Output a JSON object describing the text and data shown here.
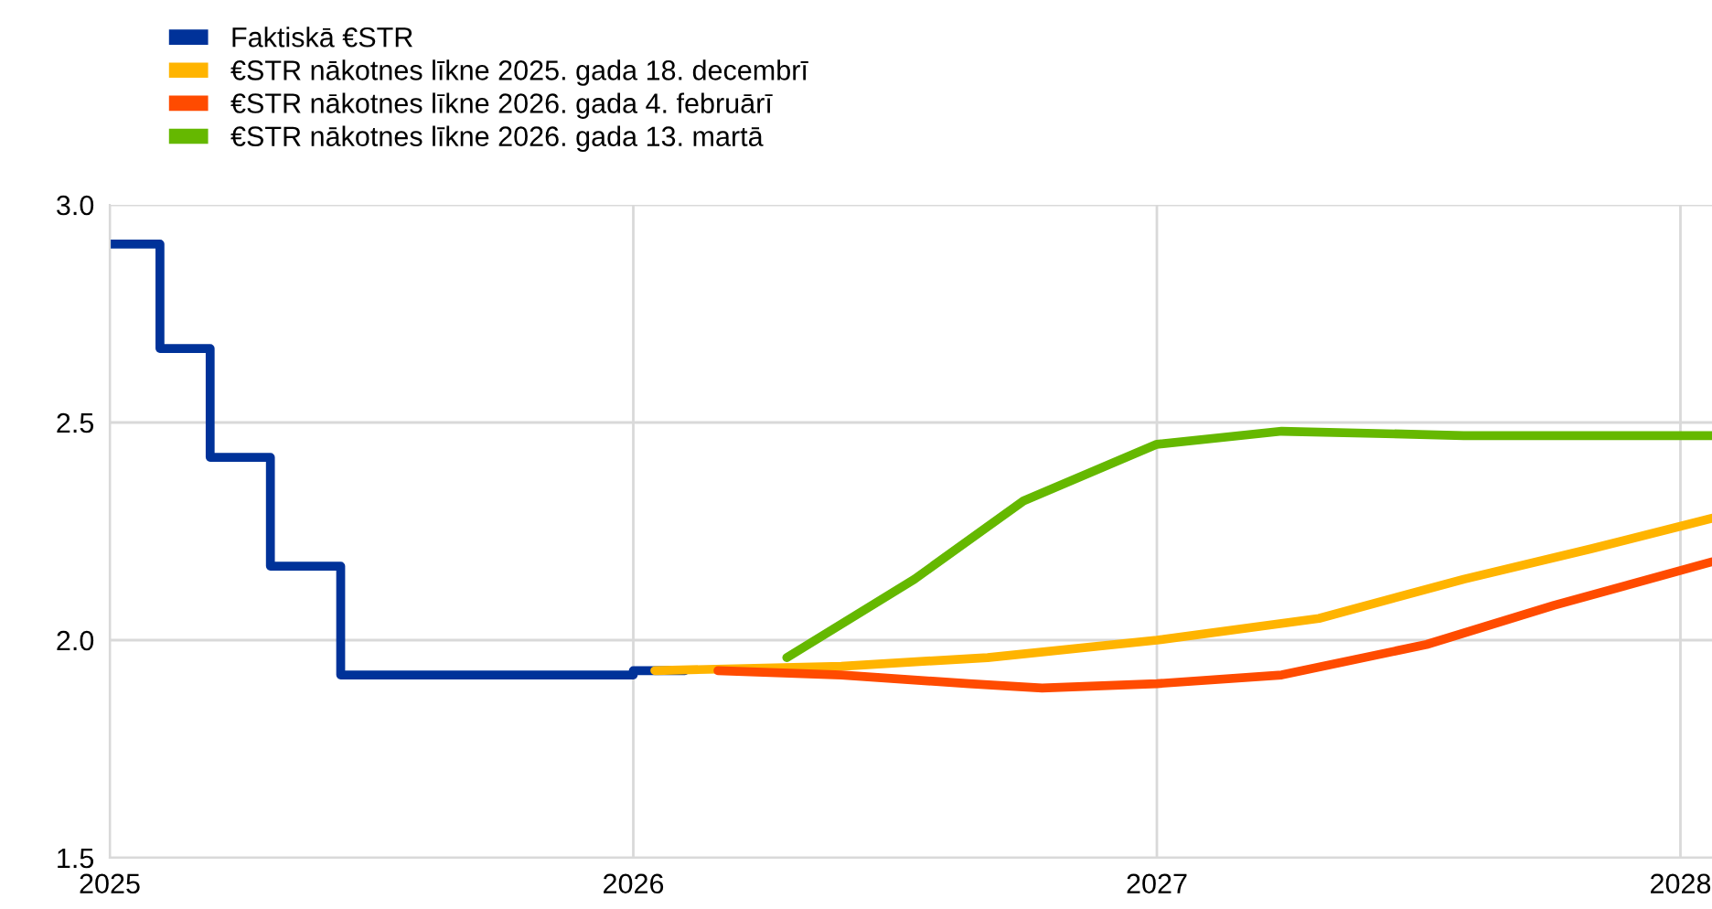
{
  "chart_data": {
    "type": "line",
    "xlim": [
      "2025-01-01",
      "2028-01-23"
    ],
    "xticks": [
      {
        "value": "2025-01-01",
        "label": "2025"
      },
      {
        "value": "2026-01-01",
        "label": "2026"
      },
      {
        "value": "2027-01-01",
        "label": "2027"
      },
      {
        "value": "2028-01-01",
        "label": "2028"
      }
    ],
    "ylim": [
      1.5,
      3.0
    ],
    "yticks": [
      {
        "value": 1.5,
        "label": "1.5"
      },
      {
        "value": 2.0,
        "label": "2.0"
      },
      {
        "value": 2.5,
        "label": "2.5"
      },
      {
        "value": 3.0,
        "label": "3.0"
      }
    ],
    "grid": true,
    "legend": "top left",
    "marker": "none",
    "line_style": "solid",
    "series": [
      {
        "name": "Faktiskā €STR",
        "type": "step",
        "color": "#003299",
        "x": [
          "2025-01-01",
          "2025-02-05",
          "2025-03-12",
          "2025-04-23",
          "2025-06-11",
          "2026-01-01",
          "2026-02-06"
        ],
        "values": [
          2.91,
          2.67,
          2.42,
          2.17,
          1.92,
          1.93,
          1.93
        ]
      },
      {
        "name": "€STR nākotnes līkne 2025. gada 18. decembrī",
        "color": "#ffb400",
        "x": [
          "2026-01-16",
          "2026-05-26",
          "2026-09-05",
          "2027-01-01",
          "2027-04-24",
          "2027-08-03",
          "2027-10-31",
          "2028-01-23"
        ],
        "values": [
          1.93,
          1.94,
          1.96,
          2.0,
          2.05,
          2.14,
          2.21,
          2.28
        ]
      },
      {
        "name": "€STR nākotnes līkne 2026. gada 4. februārī",
        "color": "#ff4b00",
        "x": [
          "2026-03-01",
          "2026-05-26",
          "2026-08-23",
          "2026-10-13",
          "2027-01-01",
          "2027-03-29",
          "2027-07-08",
          "2027-10-05",
          "2028-01-23"
        ],
        "values": [
          1.93,
          1.92,
          1.9,
          1.89,
          1.9,
          1.92,
          1.99,
          2.08,
          2.18
        ]
      },
      {
        "name": "€STR nākotnes līkne 2026. gada 13. martā",
        "color": "#65b800",
        "x": [
          "2026-04-18",
          "2026-07-16",
          "2026-09-30",
          "2027-01-01",
          "2027-03-29",
          "2027-08-03",
          "2028-01-23"
        ],
        "values": [
          1.96,
          2.14,
          2.32,
          2.45,
          2.48,
          2.47,
          2.47
        ]
      }
    ]
  }
}
